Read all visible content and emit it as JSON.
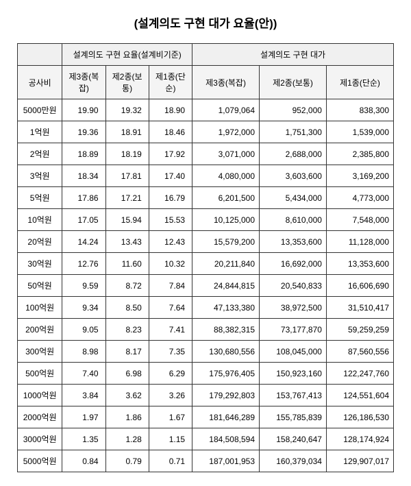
{
  "title": "(설계의도 구현 대가 요율(안))",
  "header": {
    "group1": "설계의도 구현 요율(설계비기준)",
    "group2": "설계의도 구현 대가",
    "cost_label": "공사비",
    "rate_cols": [
      "제3종(복잡)",
      "제2종(보통)",
      "제1종(단순)"
    ],
    "price_cols": [
      "제3종(복잡)",
      "제2종(보통)",
      "제1종(단순)"
    ]
  },
  "rows": [
    {
      "cost": "5000만원",
      "r3": "19.90",
      "r2": "19.32",
      "r1": "18.90",
      "p3": "1,079,064",
      "p2": "952,000",
      "p1": "838,300"
    },
    {
      "cost": "1억원",
      "r3": "19.36",
      "r2": "18.91",
      "r1": "18.46",
      "p3": "1,972,000",
      "p2": "1,751,300",
      "p1": "1,539,000"
    },
    {
      "cost": "2억원",
      "r3": "18.89",
      "r2": "18.19",
      "r1": "17.92",
      "p3": "3,071,000",
      "p2": "2,688,000",
      "p1": "2,385,800"
    },
    {
      "cost": "3억원",
      "r3": "18.34",
      "r2": "17.81",
      "r1": "17.40",
      "p3": "4,080,000",
      "p2": "3,603,600",
      "p1": "3,169,200"
    },
    {
      "cost": "5억원",
      "r3": "17.86",
      "r2": "17.21",
      "r1": "16.79",
      "p3": "6,201,500",
      "p2": "5,434,000",
      "p1": "4,773,000"
    },
    {
      "cost": "10억원",
      "r3": "17.05",
      "r2": "15.94",
      "r1": "15.53",
      "p3": "10,125,000",
      "p2": "8,610,000",
      "p1": "7,548,000"
    },
    {
      "cost": "20억원",
      "r3": "14.24",
      "r2": "13.43",
      "r1": "12.43",
      "p3": "15,579,200",
      "p2": "13,353,600",
      "p1": "11,128,000"
    },
    {
      "cost": "30억원",
      "r3": "12.76",
      "r2": "11.60",
      "r1": "10.32",
      "p3": "20,211,840",
      "p2": "16,692,000",
      "p1": "13,353,600"
    },
    {
      "cost": "50억원",
      "r3": "9.59",
      "r2": "8.72",
      "r1": "7.84",
      "p3": "24,844,815",
      "p2": "20,540,833",
      "p1": "16,606,690"
    },
    {
      "cost": "100억원",
      "r3": "9.34",
      "r2": "8.50",
      "r1": "7.64",
      "p3": "47,133,380",
      "p2": "38,972,500",
      "p1": "31,510,417"
    },
    {
      "cost": "200억원",
      "r3": "9.05",
      "r2": "8.23",
      "r1": "7.41",
      "p3": "88,382,315",
      "p2": "73,177,870",
      "p1": "59,259,259"
    },
    {
      "cost": "300억원",
      "r3": "8.98",
      "r2": "8.17",
      "r1": "7.35",
      "p3": "130,680,556",
      "p2": "108,045,000",
      "p1": "87,560,556"
    },
    {
      "cost": "500억원",
      "r3": "7.40",
      "r2": "6.98",
      "r1": "6.29",
      "p3": "175,976,405",
      "p2": "150,923,160",
      "p1": "122,247,760"
    },
    {
      "cost": "1000억원",
      "r3": "3.84",
      "r2": "3.62",
      "r1": "3.26",
      "p3": "179,292,803",
      "p2": "153,767,413",
      "p1": "124,551,604"
    },
    {
      "cost": "2000억원",
      "r3": "1.97",
      "r2": "1.86",
      "r1": "1.67",
      "p3": "181,646,289",
      "p2": "155,785,839",
      "p1": "126,186,530"
    },
    {
      "cost": "3000억원",
      "r3": "1.35",
      "r2": "1.28",
      "r1": "1.15",
      "p3": "184,508,594",
      "p2": "158,240,647",
      "p1": "128,174,924"
    },
    {
      "cost": "5000억원",
      "r3": "0.84",
      "r2": "0.79",
      "r1": "0.71",
      "p3": "187,001,953",
      "p2": "160,379,034",
      "p1": "129,907,017"
    }
  ]
}
